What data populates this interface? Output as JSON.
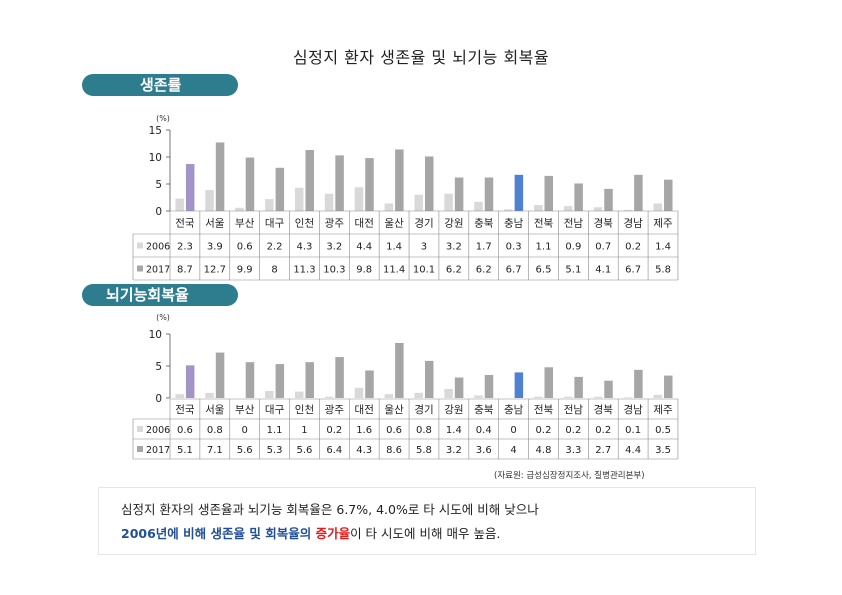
{
  "title": "심정지 환자 생존율 및 뇌기능 회복율",
  "section1_label": "생존률",
  "section2_label": "뇌기능회복율",
  "source": "(자료원: 급성심장정지조사, 질병관리본부)",
  "summary": {
    "line1": "심정지 환자의 생존율과 뇌기능 회복율은 6.7%, 4.0%로 타 시도에 비해 낮으나",
    "line2_hl": "2006년에 비해 생존율 및 회복율의 ",
    "line2_red": "증가율",
    "line2_rest": "이 타 시도에 비해 매우 높음."
  },
  "chart_data": [
    {
      "type": "bar",
      "unit_label": "(%)",
      "categories": [
        "전국",
        "서울",
        "부산",
        "대구",
        "인천",
        "광주",
        "대전",
        "울산",
        "경기",
        "강원",
        "충북",
        "충남",
        "전북",
        "전남",
        "경북",
        "경남",
        "제주"
      ],
      "ylim": [
        0,
        15
      ],
      "yticks": [
        0,
        5,
        10,
        15
      ],
      "series": [
        {
          "name": "2006",
          "values": [
            "2.3",
            "3.9",
            "0.6",
            "2.2",
            "4.3",
            "3.2",
            "4.4",
            "1.4",
            "3",
            "3.2",
            "1.7",
            "0.3",
            "1.1",
            "0.9",
            "0.7",
            "0.2",
            "1.4"
          ]
        },
        {
          "name": "2017",
          "values": [
            "8.7",
            "12.7",
            "9.9",
            "8",
            "11.3",
            "10.3",
            "9.8",
            "11.4",
            "10.1",
            "6.2",
            "6.2",
            "6.7",
            "6.5",
            "5.1",
            "4.1",
            "6.7",
            "5.8"
          ]
        }
      ],
      "colors": {
        "2006": "#d9d9d9",
        "2017": "#a6a6a6",
        "highlight_2017_전국": "#a294c6",
        "highlight_2017_충남": "#4f81d0"
      },
      "grid": false,
      "legend": "data-table"
    },
    {
      "type": "bar",
      "unit_label": "(%)",
      "categories": [
        "전국",
        "서울",
        "부산",
        "대구",
        "인천",
        "광주",
        "대전",
        "울산",
        "경기",
        "강원",
        "충북",
        "충남",
        "전북",
        "전남",
        "경북",
        "경남",
        "제주"
      ],
      "ylim": [
        0,
        10
      ],
      "yticks": [
        0,
        5,
        10
      ],
      "series": [
        {
          "name": "2006",
          "values": [
            "0.6",
            "0.8",
            "0",
            "1.1",
            "1",
            "0.2",
            "1.6",
            "0.6",
            "0.8",
            "1.4",
            "0.4",
            "0",
            "0.2",
            "0.2",
            "0.2",
            "0.1",
            "0.5"
          ]
        },
        {
          "name": "2017",
          "values": [
            "5.1",
            "7.1",
            "5.6",
            "5.3",
            "5.6",
            "6.4",
            "4.3",
            "8.6",
            "5.8",
            "3.2",
            "3.6",
            "4",
            "4.8",
            "3.3",
            "2.7",
            "4.4",
            "3.5"
          ]
        }
      ],
      "colors": {
        "2006": "#d9d9d9",
        "2017": "#a6a6a6",
        "highlight_2017_전국": "#a294c6",
        "highlight_2017_충남": "#4f81d0"
      },
      "grid": false,
      "legend": "data-table"
    }
  ]
}
